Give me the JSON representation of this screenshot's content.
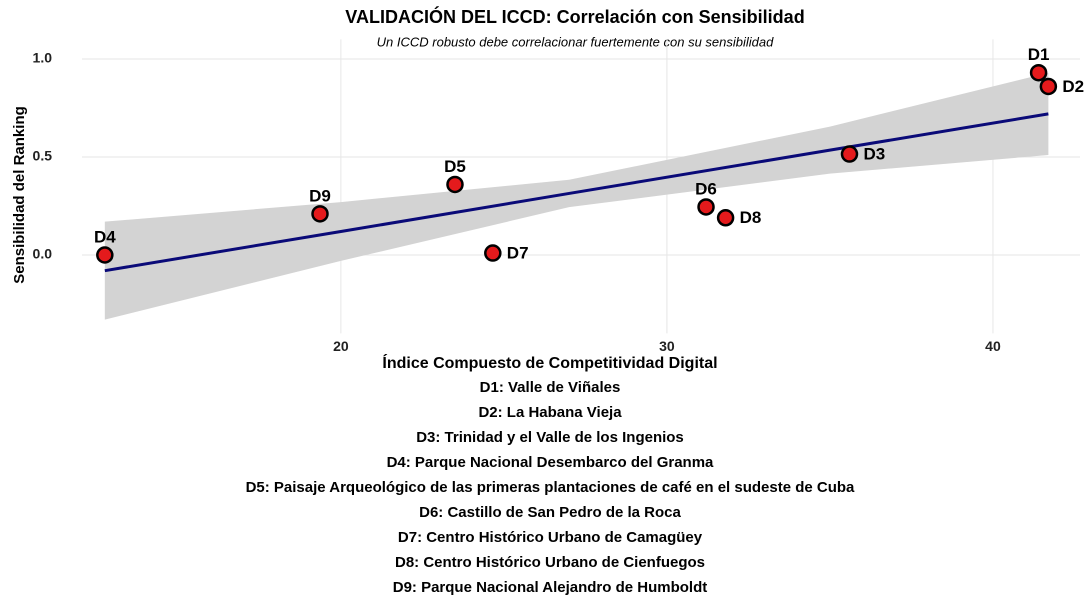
{
  "chart_data": {
    "type": "scatter",
    "title": "VALIDACIÓN DEL ICCD: Correlación con Sensibilidad",
    "subtitle": "Un ICCD robusto debe correlacionar fuertemente con su sensibilidad",
    "x_label": "Índice Compuesto de Competitividad Digital",
    "y_label": "Sensibilidad del Ranking",
    "xlim": [
      12.06,
      42.67
    ],
    "ylim": [
      -0.4,
      1.1
    ],
    "xticks": [
      20,
      30,
      40
    ],
    "yticks": [
      {
        "value": 0,
        "label": "0.0"
      },
      {
        "value": 0.5,
        "label": "0.5"
      },
      {
        "value": 1,
        "label": "1.0"
      }
    ],
    "grid": true,
    "series": [
      {
        "color": "#e41a1c",
        "labels": [
          "D4",
          "D9",
          "D5",
          "D7",
          "D6",
          "D8",
          "D3",
          "D1",
          "D2"
        ],
        "x": [
          12.76,
          19.36,
          23.5,
          24.66,
          31.2,
          31.8,
          35.6,
          41.4,
          41.7
        ],
        "values": [
          0.0,
          0.21,
          0.36,
          0.01,
          0.245,
          0.19,
          0.515,
          0.93,
          0.86
        ]
      }
    ],
    "fit": {
      "color": "#0a0a78",
      "band_color": "#d3d3d3",
      "x": [
        12.76,
        20,
        27,
        35,
        41.7
      ],
      "values": [
        -0.08,
        0.12,
        0.314,
        0.535,
        0.72
      ],
      "lower": [
        -0.33,
        -0.03,
        0.244,
        0.415,
        0.51
      ],
      "upper": [
        0.17,
        0.27,
        0.384,
        0.655,
        0.93
      ]
    },
    "notes": [
      "D1: Valle de Viñales",
      "D2: La Habana Vieja",
      "D3: Trinidad y el Valle de los Ingenios",
      "D4: Parque Nacional Desembarco del Granma",
      "D5: Paisaje Arqueológico de las primeras plantaciones de café en el sudeste de Cuba",
      "D6: Castillo de San Pedro de la Roca",
      "D7: Centro Histórico Urbano de Camagüey",
      "D8: Centro Histórico Urbano de Cienfuegos",
      "D9: Parque Nacional Alejandro de Humboldt"
    ]
  }
}
